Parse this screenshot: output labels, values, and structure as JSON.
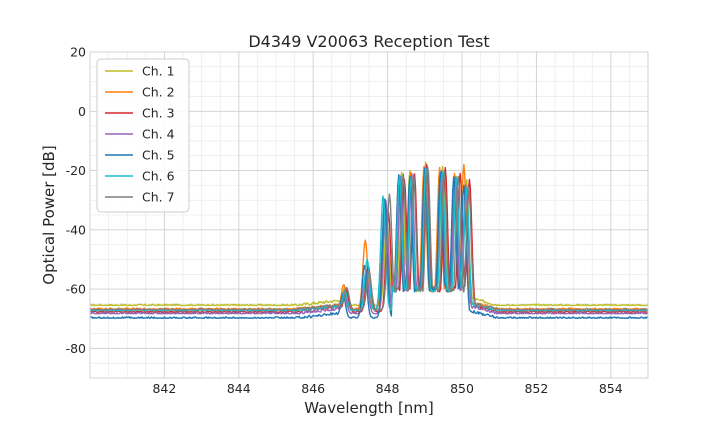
{
  "chart_data": {
    "type": "line",
    "title": "D4349 V20063 Reception Test",
    "xlabel": "Wavelength [nm]",
    "ylabel": "Optical Power [dB]",
    "xlim": [
      840.0,
      855.0
    ],
    "ylim": [
      -90,
      20
    ],
    "major_xticks": [
      842,
      844,
      846,
      848,
      850,
      852,
      854
    ],
    "major_yticks": [
      -80,
      -60,
      -40,
      -20,
      0,
      20
    ],
    "minor_xstep": 0.5,
    "minor_ystep": 5,
    "grid": true,
    "legend_position": "top-left",
    "series": [
      {
        "name": "Ch. 1",
        "color": "#bcbd22",
        "baseline": -65.5,
        "peaks": [
          [
            846.85,
            -59.5
          ],
          [
            847.45,
            -53.5
          ],
          [
            847.98,
            -36.5
          ],
          [
            848.38,
            -20.5
          ],
          [
            848.6,
            -20.0
          ],
          [
            849.02,
            -17.0
          ],
          [
            849.48,
            -18.5
          ],
          [
            849.85,
            -22.0
          ],
          [
            850.12,
            -23.0
          ]
        ]
      },
      {
        "name": "Ch. 2",
        "color": "#ff7f0e",
        "baseline": -66.8,
        "peaks": [
          [
            846.82,
            -58.5
          ],
          [
            847.4,
            -43.5
          ],
          [
            847.9,
            -39.0
          ],
          [
            848.3,
            -22.0
          ],
          [
            848.62,
            -20.5
          ],
          [
            848.98,
            -18.5
          ],
          [
            849.4,
            -19.0
          ],
          [
            849.8,
            -21.0
          ],
          [
            850.05,
            -18.0
          ]
        ]
      },
      {
        "name": "Ch. 3",
        "color": "#d62728",
        "baseline": -67.8,
        "peaks": [
          [
            846.88,
            -60.0
          ],
          [
            847.48,
            -52.0
          ],
          [
            848.02,
            -34.0
          ],
          [
            848.45,
            -23.0
          ],
          [
            848.72,
            -21.0
          ],
          [
            849.05,
            -18.0
          ],
          [
            849.55,
            -19.0
          ],
          [
            849.95,
            -21.0
          ],
          [
            850.2,
            -23.0
          ]
        ]
      },
      {
        "name": "Ch. 4",
        "color": "#9467bd",
        "baseline": -68.3,
        "peaks": [
          [
            846.83,
            -61.0
          ],
          [
            847.42,
            -54.0
          ],
          [
            847.95,
            -30.0
          ],
          [
            848.35,
            -22.0
          ],
          [
            848.65,
            -21.0
          ],
          [
            849.0,
            -19.0
          ],
          [
            849.45,
            -20.0
          ],
          [
            849.82,
            -22.0
          ],
          [
            850.1,
            -25.0
          ]
        ]
      },
      {
        "name": "Ch. 5",
        "color": "#1f77b4",
        "baseline": -69.8,
        "peaks": [
          [
            846.8,
            -61.5
          ],
          [
            847.38,
            -52.0
          ],
          [
            847.92,
            -29.5
          ],
          [
            848.3,
            -21.5
          ],
          [
            848.6,
            -22.0
          ],
          [
            849.0,
            -19.5
          ],
          [
            849.42,
            -20.5
          ],
          [
            849.78,
            -22.0
          ],
          [
            850.05,
            -25.0
          ]
        ]
      },
      {
        "name": "Ch. 6",
        "color": "#17becf",
        "baseline": -67.3,
        "peaks": [
          [
            846.85,
            -60.5
          ],
          [
            847.45,
            -50.0
          ],
          [
            847.88,
            -28.5
          ],
          [
            848.32,
            -21.5
          ],
          [
            848.63,
            -22.5
          ],
          [
            849.03,
            -19.0
          ],
          [
            849.47,
            -20.5
          ],
          [
            849.85,
            -22.5
          ],
          [
            850.12,
            -26.0
          ]
        ]
      },
      {
        "name": "Ch. 7",
        "color": "#7f7f7f",
        "baseline": -67.0,
        "peaks": [
          [
            846.9,
            -59.5
          ],
          [
            847.5,
            -54.0
          ],
          [
            848.05,
            -28.0
          ],
          [
            848.42,
            -21.0
          ],
          [
            848.7,
            -21.5
          ],
          [
            849.08,
            -18.5
          ],
          [
            849.52,
            -20.0
          ],
          [
            849.9,
            -22.0
          ],
          [
            850.18,
            -25.5
          ]
        ]
      }
    ]
  }
}
